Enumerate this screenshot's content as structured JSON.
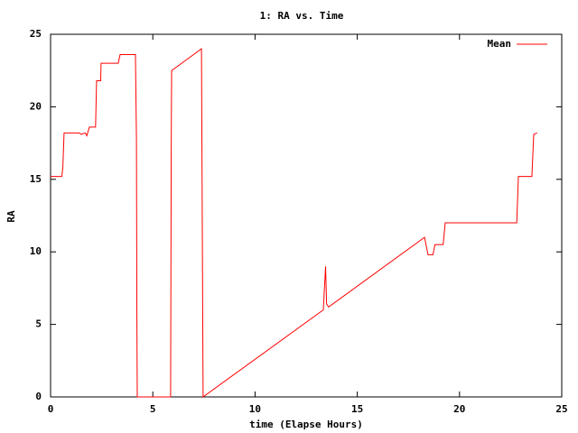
{
  "chart_data": {
    "type": "line",
    "title": "1: RA vs. Time",
    "x_label": "time (Elapse Hours)",
    "y_label": "RA",
    "xlim": [
      0,
      25
    ],
    "ylim": [
      0,
      25
    ],
    "xticks": [
      0,
      5,
      10,
      15,
      20,
      25
    ],
    "yticks": [
      0,
      5,
      10,
      15,
      20,
      25
    ],
    "legend": "top-right",
    "x": [
      0,
      0.55,
      0.6,
      0.66,
      1.4,
      1.5,
      1.7,
      1.77,
      1.9,
      2.2,
      2.25,
      2.45,
      2.47,
      3.31,
      3.4,
      4.15,
      4.2,
      4.22,
      4.24,
      5.87,
      5.9,
      5.92,
      7.38,
      7.46,
      13.34,
      13.45,
      13.5,
      13.6,
      18.29,
      18.46,
      18.7,
      18.8,
      19.2,
      19.3,
      22.8,
      22.88,
      23.54,
      23.63,
      23.8
    ],
    "series": [
      {
        "name": "Mean",
        "color": "#ff0000",
        "values": [
          15.2,
          15.2,
          15.8,
          18.2,
          18.2,
          18.1,
          18.2,
          18.0,
          18.6,
          18.6,
          21.8,
          21.8,
          23.0,
          23.0,
          23.6,
          23.6,
          17.8,
          6.0,
          0,
          0,
          16.9,
          22.5,
          24.0,
          0,
          6.0,
          9.0,
          6.4,
          6.2,
          11.0,
          9.8,
          9.8,
          10.5,
          10.5,
          12.0,
          12.0,
          15.2,
          15.2,
          18.1,
          18.2
        ]
      }
    ]
  }
}
